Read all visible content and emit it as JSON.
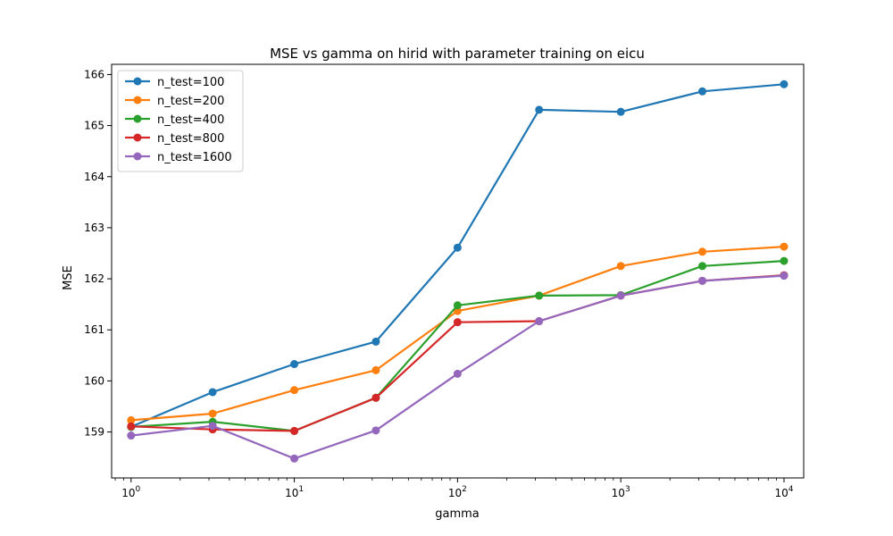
{
  "chart_data": {
    "type": "line",
    "title": "MSE vs gamma on hirid with parameter training on eicu",
    "xlabel": "gamma",
    "ylabel": "MSE",
    "xscale": "log",
    "x": [
      1,
      3.16,
      10,
      31.6,
      100,
      316,
      1000,
      3160,
      10000
    ],
    "xlim": [
      0.76,
      13200
    ],
    "ylim": [
      158.1,
      166.2
    ],
    "xticks": [
      {
        "value": 1,
        "base": "10",
        "exp": "0"
      },
      {
        "value": 10,
        "base": "10",
        "exp": "1"
      },
      {
        "value": 100,
        "base": "10",
        "exp": "2"
      },
      {
        "value": 1000,
        "base": "10",
        "exp": "3"
      },
      {
        "value": 10000,
        "base": "10",
        "exp": "4"
      }
    ],
    "yticks": [
      {
        "value": 159,
        "label": "159"
      },
      {
        "value": 160,
        "label": "160"
      },
      {
        "value": 161,
        "label": "161"
      },
      {
        "value": 162,
        "label": "162"
      },
      {
        "value": 163,
        "label": "163"
      },
      {
        "value": 164,
        "label": "164"
      },
      {
        "value": 165,
        "label": "165"
      },
      {
        "value": 166,
        "label": "166"
      }
    ],
    "grid": false,
    "legend": "top-left",
    "series": [
      {
        "name": "n_test=100",
        "color": "#1f77b4",
        "values": [
          159.1,
          159.78,
          160.33,
          160.77,
          162.61,
          165.31,
          165.27,
          165.67,
          165.81
        ]
      },
      {
        "name": "n_test=200",
        "color": "#ff7f0e",
        "values": [
          159.23,
          159.36,
          159.82,
          160.21,
          161.37,
          161.67,
          162.25,
          162.53,
          162.63
        ]
      },
      {
        "name": "n_test=400",
        "color": "#2ca02c",
        "values": [
          159.1,
          159.2,
          159.02,
          159.67,
          161.48,
          161.67,
          161.68,
          162.25,
          162.35
        ]
      },
      {
        "name": "n_test=800",
        "color": "#d62728",
        "values": [
          159.11,
          159.05,
          159.02,
          159.67,
          161.15,
          161.17,
          161.67,
          161.96,
          162.07
        ]
      },
      {
        "name": "n_test=1600",
        "color": "#9467bd",
        "values": [
          158.93,
          159.12,
          158.48,
          159.03,
          160.14,
          161.17,
          161.67,
          161.96,
          162.06
        ]
      }
    ]
  }
}
